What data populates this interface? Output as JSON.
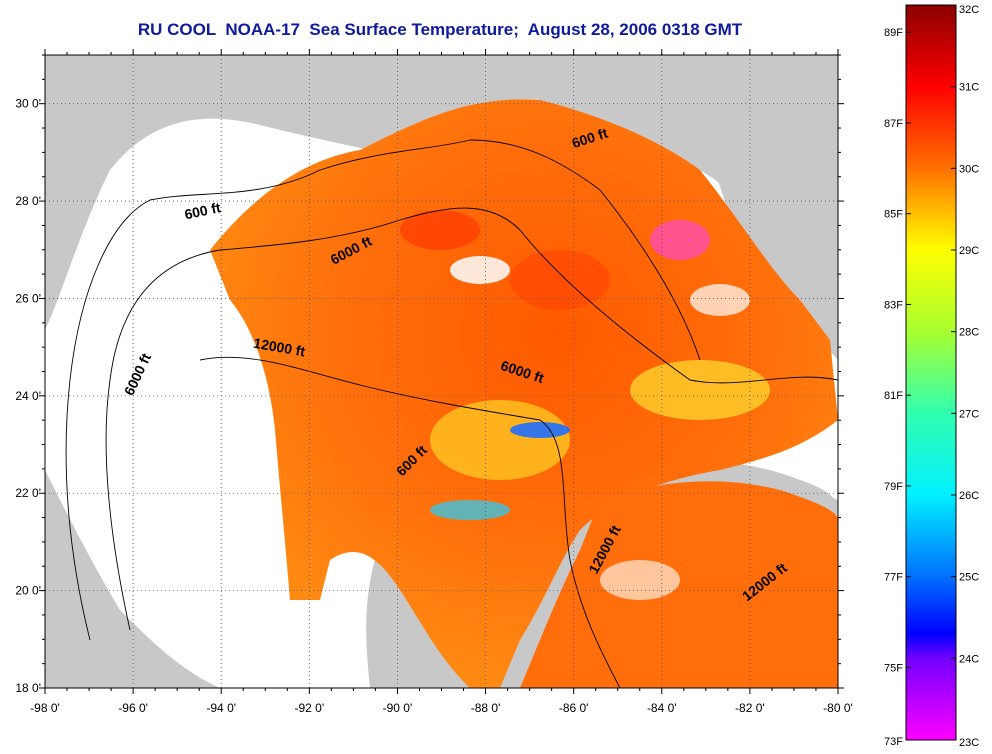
{
  "title": "RU COOL  NOAA-17  Sea Surface Temperature;  August 28, 2006 0318 GMT",
  "map": {
    "lon_range": [
      -98,
      -80
    ],
    "lat_range": [
      18,
      31
    ],
    "x_ticks": [
      {
        "value": -98,
        "label": "-98 0'"
      },
      {
        "value": -96,
        "label": "-96 0'"
      },
      {
        "value": -94,
        "label": "-94 0'"
      },
      {
        "value": -92,
        "label": "-92 0'"
      },
      {
        "value": -90,
        "label": "-90 0'"
      },
      {
        "value": -88,
        "label": "-88 0'"
      },
      {
        "value": -86,
        "label": "-86 0'"
      },
      {
        "value": -84,
        "label": "-84 0'"
      },
      {
        "value": -82,
        "label": "-82 0'"
      },
      {
        "value": -80,
        "label": "-80 0'"
      }
    ],
    "y_ticks": [
      {
        "value": 30,
        "label": "30 0'"
      },
      {
        "value": 28,
        "label": "28 0'"
      },
      {
        "value": 26,
        "label": "26 0'"
      },
      {
        "value": 24,
        "label": "24 0'"
      },
      {
        "value": 22,
        "label": "22 0'"
      },
      {
        "value": 20,
        "label": "20 0'"
      },
      {
        "value": 18,
        "label": "18 0'"
      }
    ],
    "grid": "dotted",
    "land_color": "#c8c8c8",
    "no_data_color": "#ffffff",
    "contour_labels": [
      {
        "text": "600 ft",
        "lon": -85.6,
        "lat": 29.2,
        "angle": -18
      },
      {
        "text": "600 ft",
        "lon": -94.4,
        "lat": 27.7,
        "angle": -12
      },
      {
        "text": "6000 ft",
        "lon": -91.0,
        "lat": 26.9,
        "angle": -28
      },
      {
        "text": "12000 ft",
        "lon": -92.7,
        "lat": 24.9,
        "angle": 10
      },
      {
        "text": "6000 ft",
        "lon": -87.2,
        "lat": 24.4,
        "angle": 18
      },
      {
        "text": "6000 ft",
        "lon": -95.8,
        "lat": 24.4,
        "angle": -65
      },
      {
        "text": "600 ft",
        "lon": -89.6,
        "lat": 22.6,
        "angle": -45
      },
      {
        "text": "12000 ft",
        "lon": -85.2,
        "lat": 20.8,
        "angle": -62
      },
      {
        "text": "12000 ft",
        "lon": -81.6,
        "lat": 20.1,
        "angle": -38
      }
    ]
  },
  "colorbar": {
    "min_c": 23,
    "max_c": 32,
    "celsius_labels": [
      "32C",
      "31C",
      "30C",
      "29C",
      "28C",
      "27C",
      "26C",
      "25C",
      "24C",
      "23C"
    ],
    "fahrenheit_labels": [
      "89F",
      "87F",
      "85F",
      "83F",
      "81F",
      "79F",
      "77F",
      "75F",
      "73F"
    ],
    "fahrenheit_values": [
      89,
      87,
      85,
      83,
      81,
      79,
      77,
      75,
      73
    ],
    "stops": [
      {
        "c": 32,
        "color": "#8b0000"
      },
      {
        "c": 31,
        "color": "#ff0000"
      },
      {
        "c": 30,
        "color": "#ff7000"
      },
      {
        "c": 29,
        "color": "#ffff00"
      },
      {
        "c": 28,
        "color": "#a8ff30"
      },
      {
        "c": 27,
        "color": "#30ffb0"
      },
      {
        "c": 26,
        "color": "#00f0ff"
      },
      {
        "c": 25,
        "color": "#0070ff"
      },
      {
        "c": 24.3,
        "color": "#0000ff"
      },
      {
        "c": 24,
        "color": "#7000ff"
      },
      {
        "c": 23,
        "color": "#ff00ff"
      }
    ]
  }
}
